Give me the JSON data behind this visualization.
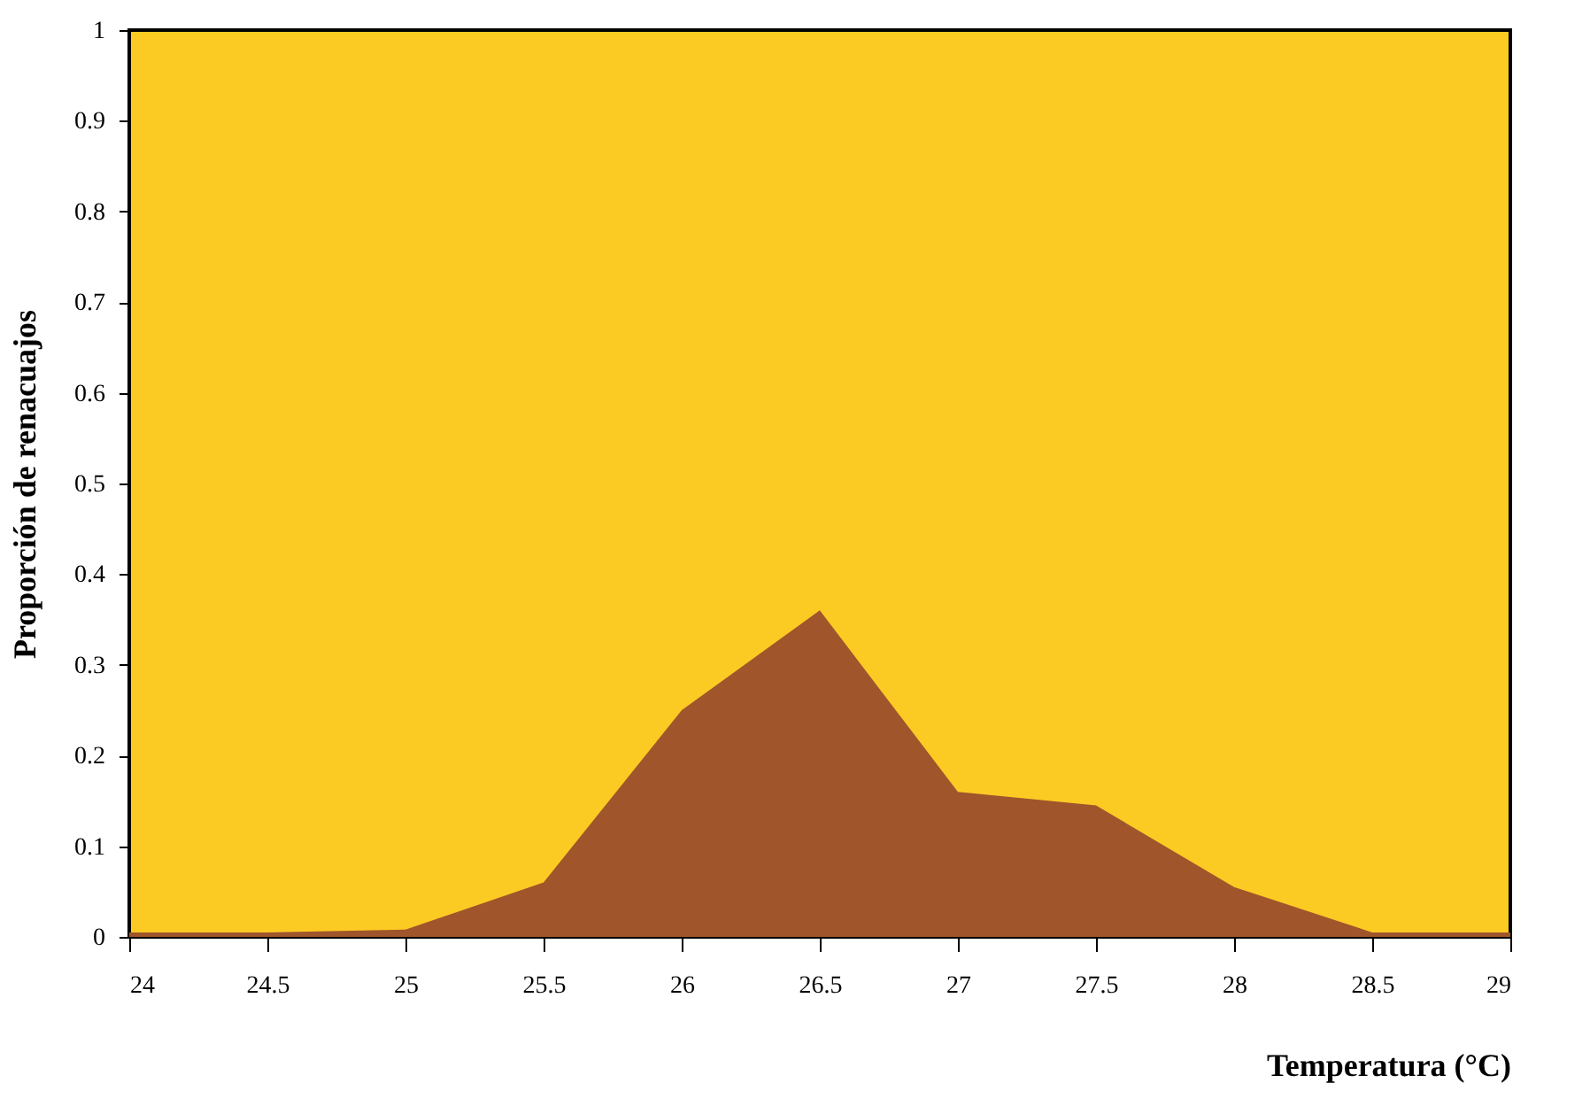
{
  "chart_data": {
    "type": "area",
    "xlabel": "Temperatura (°C)",
    "ylabel": "Proporción de renacuajos",
    "x": [
      24,
      24.5,
      25,
      25.5,
      26,
      26.5,
      27,
      27.5,
      28,
      28.5,
      29
    ],
    "series": [
      {
        "color": "#a0552b",
        "values": [
          0.005,
          0.005,
          0.008,
          0.06,
          0.25,
          0.36,
          0.16,
          0.145,
          0.055,
          0.005,
          0.005
        ]
      }
    ],
    "xlim": [
      24,
      29
    ],
    "ylim": [
      0,
      1
    ],
    "xticks": [
      24,
      24.5,
      25,
      25.5,
      26,
      26.5,
      27,
      27.5,
      28,
      28.5,
      29
    ],
    "yticks": [
      0,
      0.1,
      0.2,
      0.3,
      0.4,
      0.5,
      0.6,
      0.7,
      0.8,
      0.9,
      1
    ],
    "grid": false
  }
}
